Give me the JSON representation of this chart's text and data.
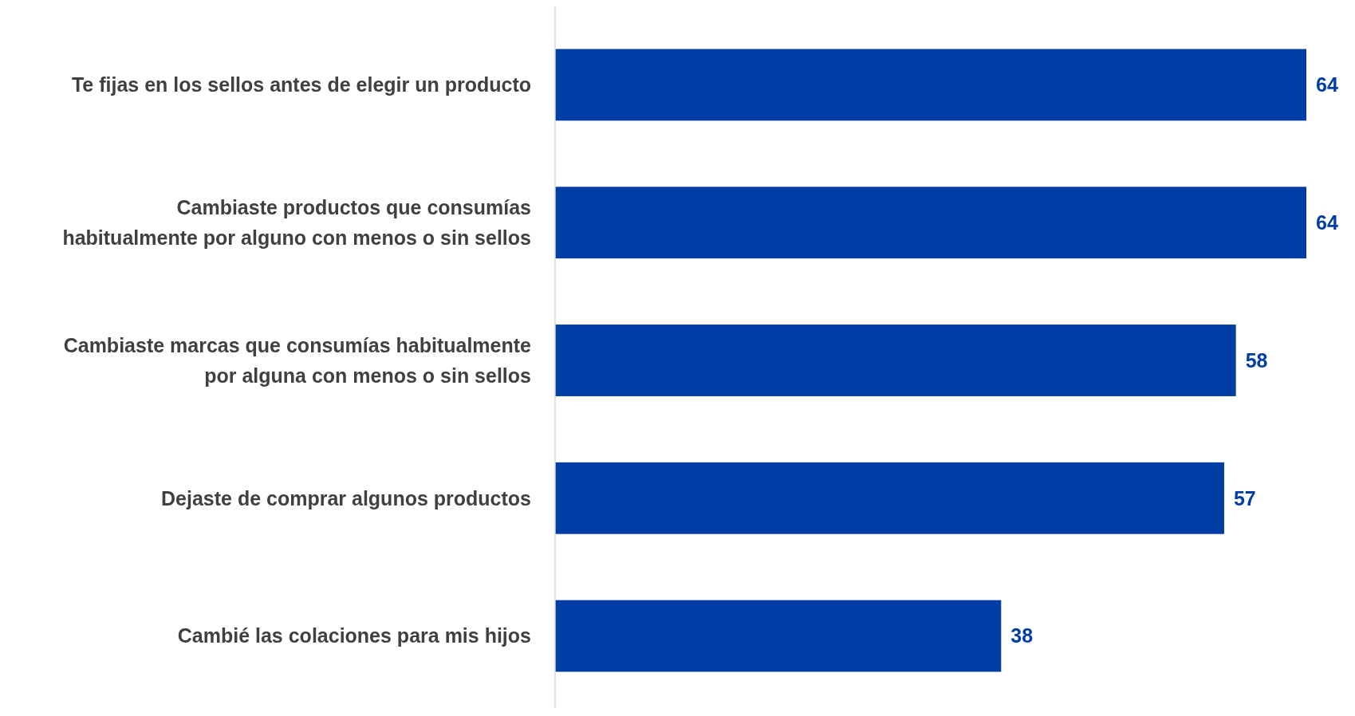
{
  "chart_data": {
    "type": "bar",
    "orientation": "horizontal",
    "categories": [
      "Te fijas en los sellos antes de elegir un producto",
      "Cambiaste productos que consumías habitualmente por alguno con menos o sin sellos",
      "Cambiaste marcas que consumías habitualmente por alguna con menos o sin sellos",
      "Dejaste de comprar algunos productos",
      "Cambié las colaciones para mis hijos"
    ],
    "values": [
      64,
      64,
      58,
      57,
      38
    ],
    "color": "#003da5",
    "data_labels": true
  }
}
